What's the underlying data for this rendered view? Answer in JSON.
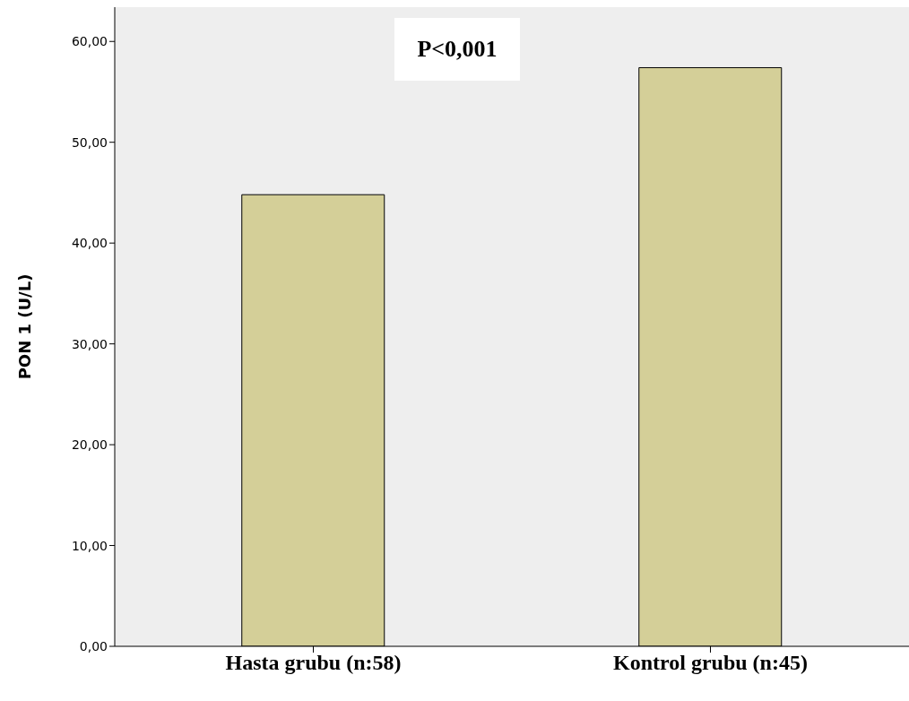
{
  "chart_data": {
    "type": "bar",
    "categories": [
      "Hasta grubu (n:58)",
      "Kontrol  grubu (n:45)"
    ],
    "values": [
      44.8,
      57.4
    ],
    "color": "#d4cf98",
    "ylabel": "PON 1 (U/L)",
    "ylim": [
      0,
      63.4
    ],
    "yticks": [
      {
        "value": 0,
        "label": "0,00"
      },
      {
        "value": 10,
        "label": "10,00"
      },
      {
        "value": 20,
        "label": "20,00"
      },
      {
        "value": 30,
        "label": "30,00"
      },
      {
        "value": 40,
        "label": "40,00"
      },
      {
        "value": 50,
        "label": "50,00"
      },
      {
        "value": 60,
        "label": "60,00"
      }
    ],
    "annotations": [
      "P<0,001"
    ],
    "grid": false,
    "legend": false
  }
}
